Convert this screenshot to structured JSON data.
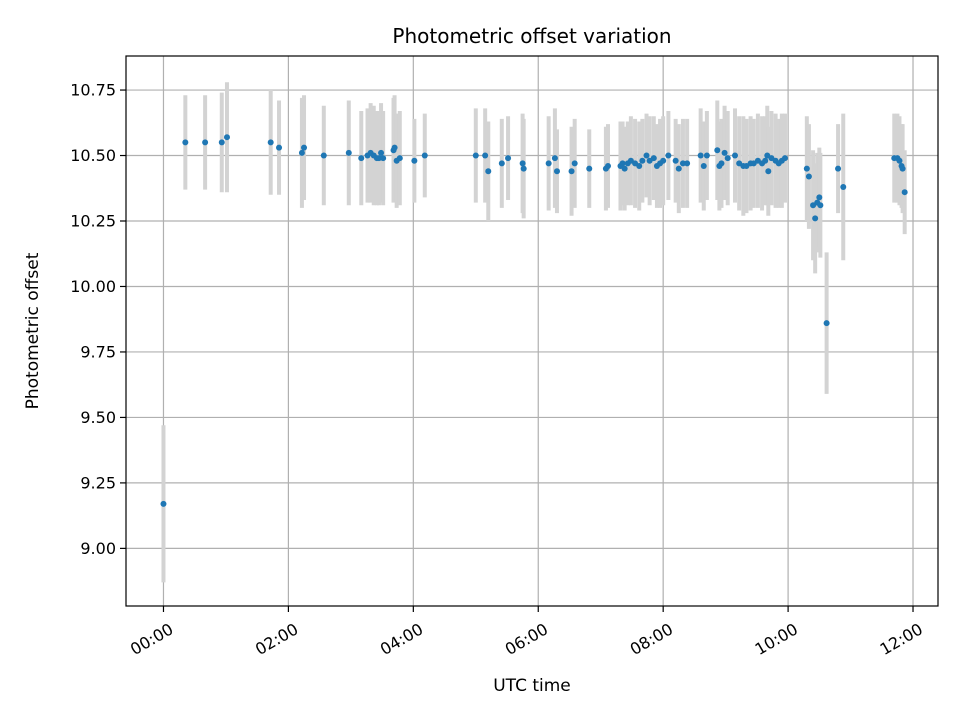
{
  "chart_data": {
    "type": "scatter",
    "title": "Photometric offset variation",
    "xlabel": "UTC time",
    "ylabel": "Photometric offset",
    "xlim": [
      "-00:36",
      "12:24"
    ],
    "ylim": [
      8.78,
      10.88
    ],
    "grid": true,
    "x_ticks": [
      "00:00",
      "02:00",
      "04:00",
      "06:00",
      "08:00",
      "10:00",
      "12:00"
    ],
    "y_ticks": [
      "9.00",
      "9.25",
      "9.50",
      "9.75",
      "10.00",
      "10.25",
      "10.50",
      "10.75"
    ],
    "colors": {
      "marker": "#1f77b4",
      "errorbar": "#d3d3d3",
      "grid": "#b0b0b0"
    },
    "series": [
      {
        "x": [
          "00:00",
          "00:21",
          "00:40",
          "00:56",
          "01:01",
          "01:43",
          "01:51",
          "02:13",
          "02:15",
          "02:34",
          "02:58",
          "03:10",
          "03:16",
          "03:19",
          "03:22",
          "03:25",
          "03:27",
          "03:29",
          "03:31",
          "03:41",
          "03:42",
          "03:44",
          "03:47",
          "04:01",
          "04:11",
          "05:00",
          "05:09",
          "05:12",
          "05:25",
          "05:31",
          "05:45",
          "05:46",
          "06:10",
          "06:16",
          "06:18",
          "06:32",
          "06:35",
          "06:49",
          "07:05",
          "07:07",
          "07:19",
          "07:21",
          "07:23",
          "07:26",
          "07:29",
          "07:33",
          "07:37",
          "07:40",
          "07:44",
          "07:47",
          "07:51",
          "07:54",
          "07:57",
          "08:00",
          "08:05",
          "08:12",
          "08:15",
          "08:19",
          "08:23",
          "08:36",
          "08:39",
          "08:42",
          "08:52",
          "08:54",
          "08:56",
          "08:59",
          "09:02",
          "09:09",
          "09:13",
          "09:17",
          "09:20",
          "09:24",
          "09:27",
          "09:31",
          "09:35",
          "09:38",
          "09:40",
          "09:41",
          "09:44",
          "09:48",
          "09:51",
          "09:54",
          "09:57",
          "10:18",
          "10:20",
          "10:24",
          "10:26",
          "10:28",
          "10:30",
          "10:31",
          "10:37",
          "10:48",
          "10:53",
          "11:42",
          "11:45",
          "11:47",
          "11:49",
          "11:50",
          "11:52"
        ],
        "y": [
          9.17,
          10.55,
          10.55,
          10.55,
          10.57,
          10.55,
          10.53,
          10.51,
          10.53,
          10.5,
          10.51,
          10.49,
          10.5,
          10.51,
          10.5,
          10.49,
          10.49,
          10.51,
          10.49,
          10.52,
          10.53,
          10.48,
          10.49,
          10.48,
          10.5,
          10.5,
          10.5,
          10.44,
          10.47,
          10.49,
          10.47,
          10.45,
          10.47,
          10.49,
          10.44,
          10.44,
          10.47,
          10.45,
          10.45,
          10.46,
          10.46,
          10.47,
          10.45,
          10.47,
          10.48,
          10.47,
          10.46,
          10.48,
          10.5,
          10.48,
          10.49,
          10.46,
          10.47,
          10.48,
          10.5,
          10.48,
          10.45,
          10.47,
          10.47,
          10.5,
          10.46,
          10.5,
          10.52,
          10.46,
          10.47,
          10.51,
          10.49,
          10.5,
          10.47,
          10.46,
          10.46,
          10.47,
          10.47,
          10.48,
          10.47,
          10.48,
          10.5,
          10.44,
          10.49,
          10.48,
          10.47,
          10.48,
          10.49,
          10.45,
          10.42,
          10.31,
          10.26,
          10.32,
          10.34,
          10.31,
          9.86,
          10.45,
          10.38,
          10.49,
          10.49,
          10.48,
          10.46,
          10.45,
          10.36
        ],
        "err": [
          0.3,
          0.18,
          0.18,
          0.19,
          0.21,
          0.2,
          0.18,
          0.21,
          0.2,
          0.19,
          0.2,
          0.18,
          0.18,
          0.19,
          0.19,
          0.18,
          0.18,
          0.19,
          0.18,
          0.2,
          0.2,
          0.18,
          0.18,
          0.16,
          0.16,
          0.18,
          0.18,
          0.19,
          0.17,
          0.16,
          0.19,
          0.19,
          0.18,
          0.19,
          0.16,
          0.17,
          0.17,
          0.15,
          0.16,
          0.16,
          0.17,
          0.16,
          0.16,
          0.16,
          0.17,
          0.17,
          0.17,
          0.16,
          0.16,
          0.17,
          0.16,
          0.16,
          0.17,
          0.17,
          0.17,
          0.16,
          0.17,
          0.17,
          0.17,
          0.18,
          0.17,
          0.17,
          0.19,
          0.17,
          0.17,
          0.18,
          0.18,
          0.18,
          0.18,
          0.19,
          0.18,
          0.18,
          0.17,
          0.18,
          0.18,
          0.17,
          0.19,
          0.17,
          0.18,
          0.18,
          0.17,
          0.18,
          0.17,
          0.2,
          0.2,
          0.21,
          0.21,
          0.19,
          0.19,
          0.2,
          0.27,
          0.17,
          0.28,
          0.17,
          0.17,
          0.17,
          0.16,
          0.17,
          0.16
        ]
      }
    ]
  }
}
